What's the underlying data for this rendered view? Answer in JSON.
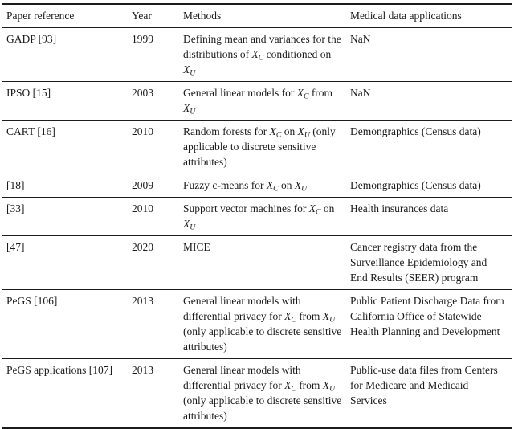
{
  "page": {
    "background": "#ffffff",
    "text_color": "#1b1b1b",
    "rule_color": "#1c1c1c"
  },
  "table": {
    "columns": [
      {
        "label": "Paper reference"
      },
      {
        "label": "Year"
      },
      {
        "label": "Methods"
      },
      {
        "label": "Medical data applications"
      }
    ],
    "rows": [
      {
        "paper_reference": "GADP [93]",
        "year": "1999",
        "methods": "Defining mean and variances for the distributions of X_C conditioned on X_U",
        "medical_data_applications": "NaN"
      },
      {
        "paper_reference": "IPSO [15]",
        "year": "2003",
        "methods": "General linear models for X_C from X_U",
        "medical_data_applications": "NaN"
      },
      {
        "paper_reference": "CART [16]",
        "year": "2010",
        "methods": "Random forests for X_C on X_U (only applicable to discrete sensitive attributes)",
        "medical_data_applications": "Demongraphics (Census data)"
      },
      {
        "paper_reference": "[18]",
        "year": "2009",
        "methods": "Fuzzy c-means for X_C on X_U",
        "medical_data_applications": "Demongraphics (Census data)"
      },
      {
        "paper_reference": "[33]",
        "year": "2010",
        "methods": "Support vector machines for X_C on X_U",
        "medical_data_applications": "Health insurances data"
      },
      {
        "paper_reference": "[47]",
        "year": "2020",
        "methods": "MICE",
        "medical_data_applications": "Cancer registry data from the Surveillance Epidemiology and End Results (SEER) program"
      },
      {
        "paper_reference": "PeGS [106]",
        "year": "2013",
        "methods": "General linear models with differential privacy for X_C from X_U (only applicable to discrete sensitive attributes)",
        "medical_data_applications": "Public Patient Discharge Data from California Office of Statewide Health Planning and Development"
      },
      {
        "paper_reference": "PeGS applications [107]",
        "year": "2013",
        "methods": "General linear models with differential privacy for X_C from X_U (only applicable to discrete sensitive attributes)",
        "medical_data_applications": "Public-use data files from Centers for Medicare and Medicaid Services"
      }
    ]
  }
}
